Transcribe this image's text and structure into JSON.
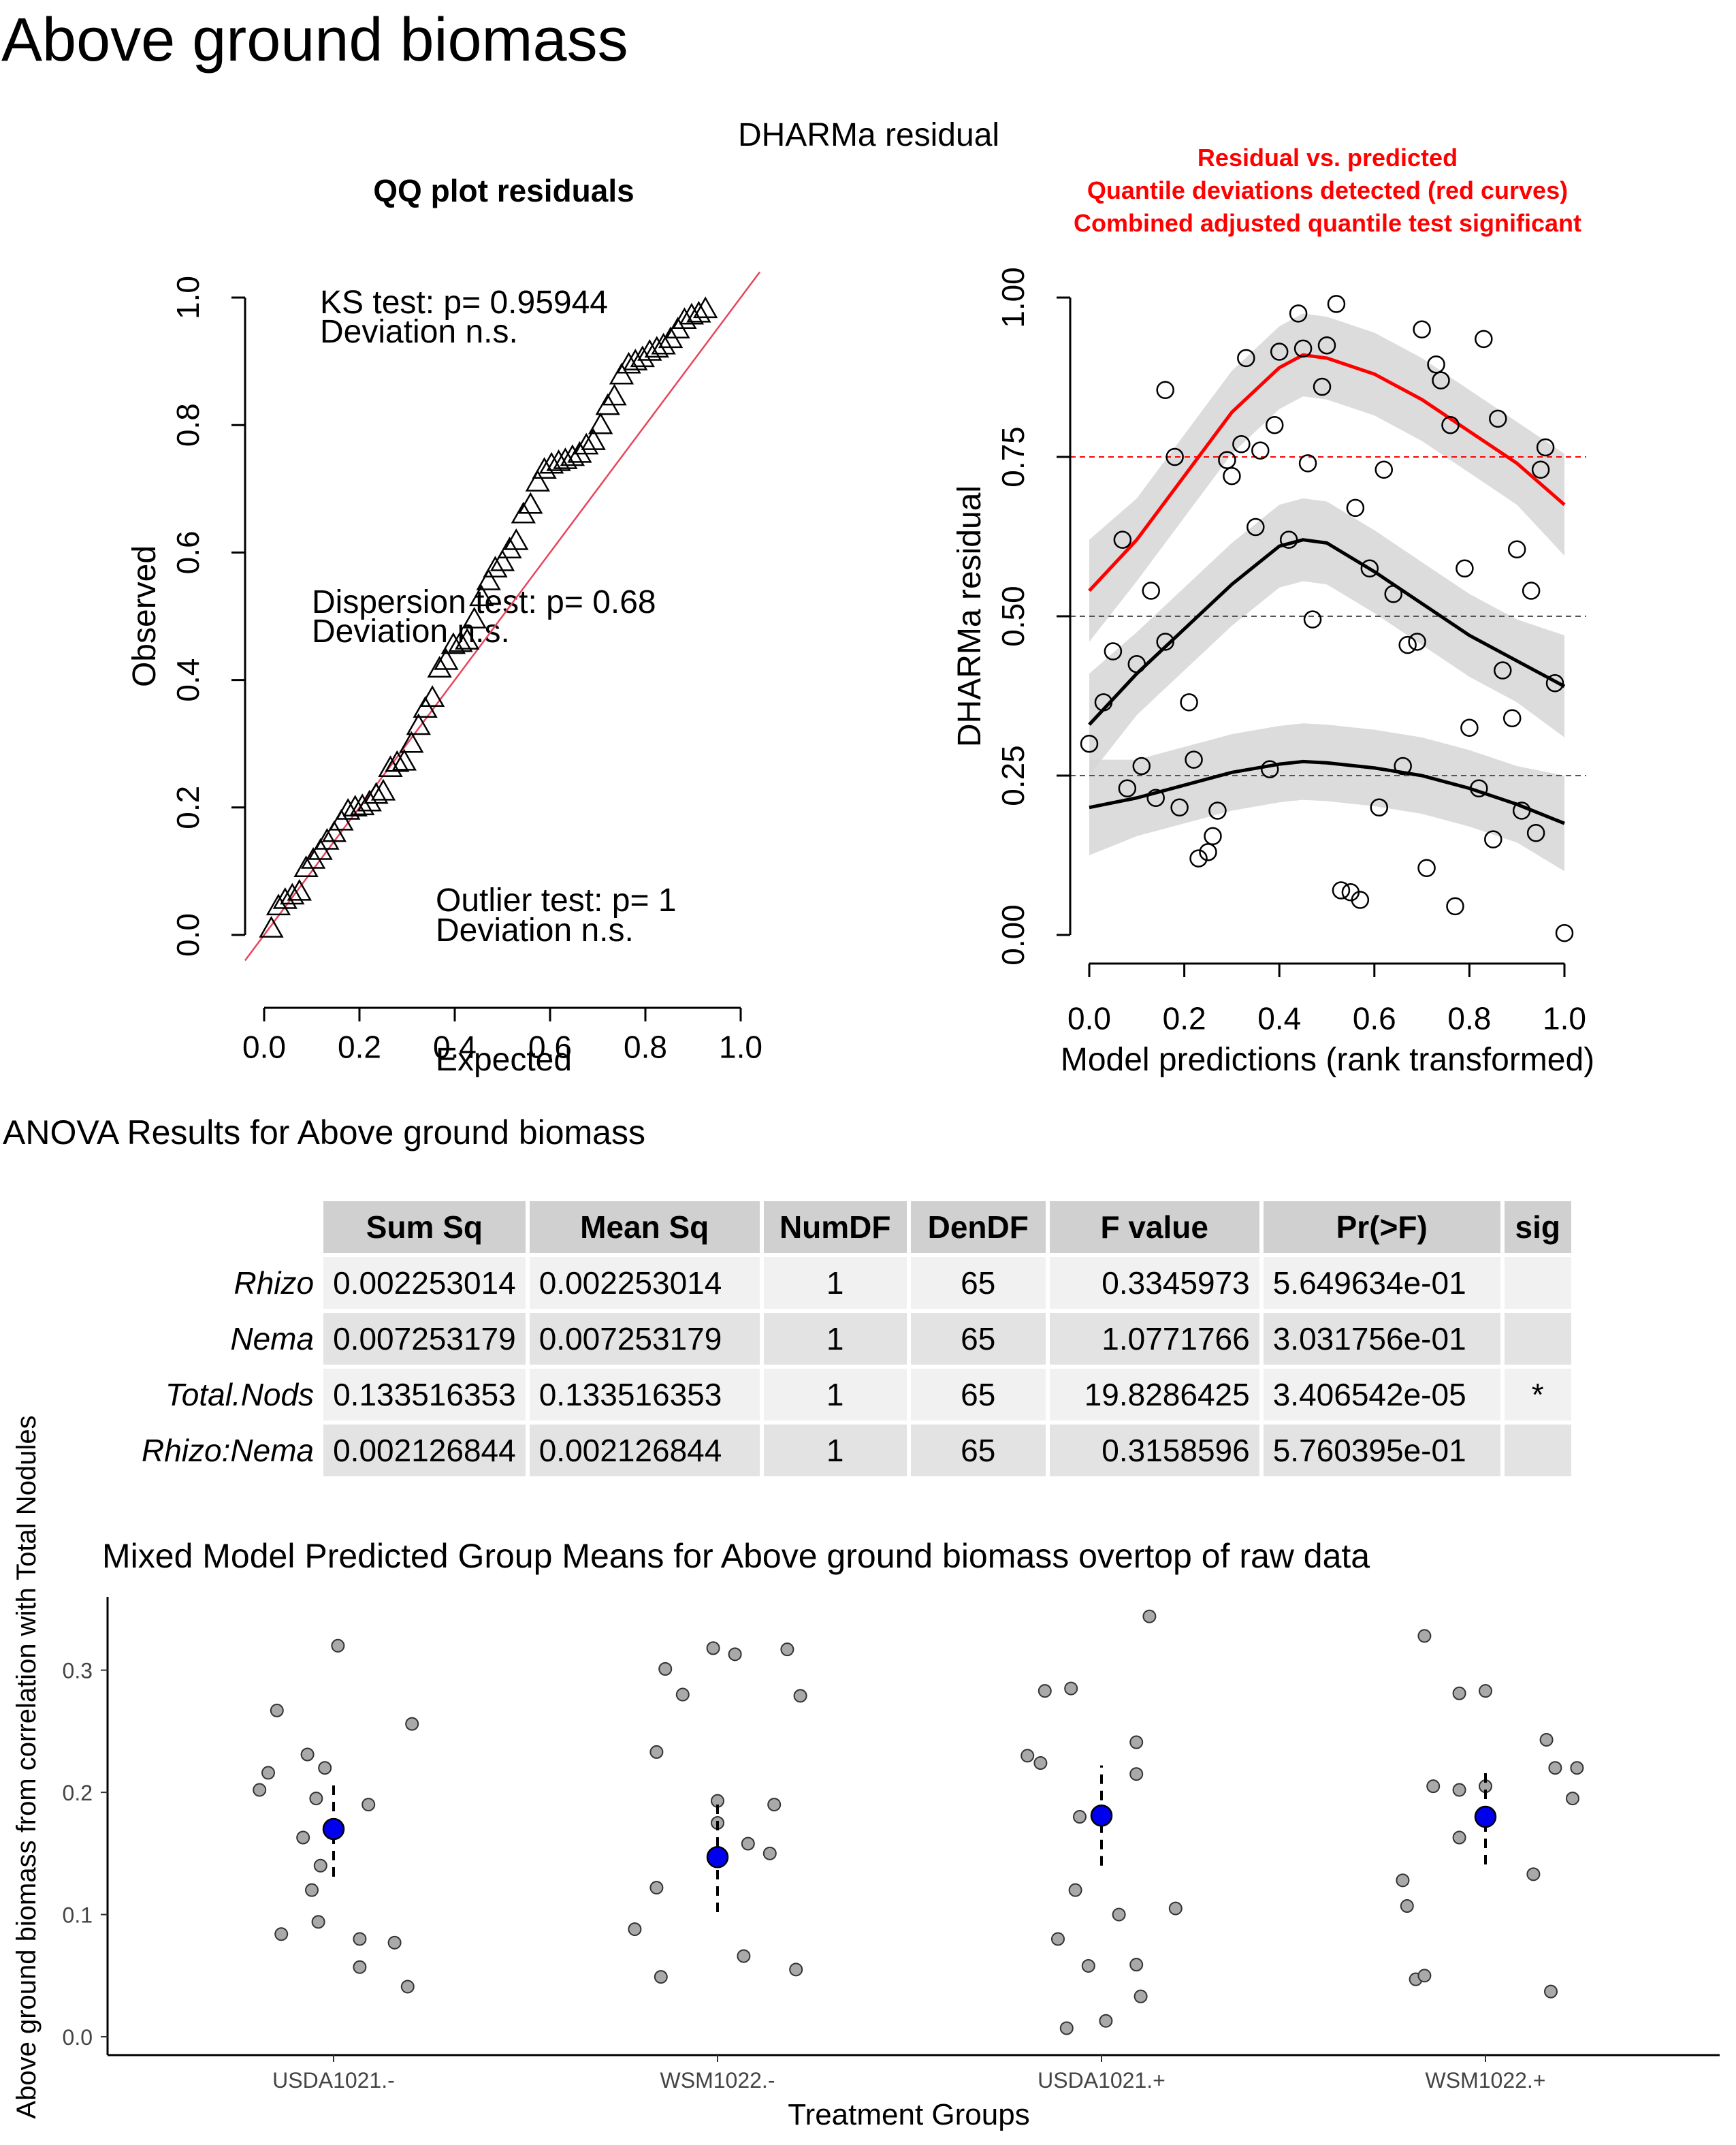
{
  "page_title": "Above ground biomass",
  "dharma_title": "DHARMa residual",
  "chart_data": [
    {
      "type": "scatter",
      "title": "QQ plot residuals",
      "xlabel": "Expected",
      "ylabel": "Observed",
      "xlim": [
        0,
        1
      ],
      "ylim": [
        0,
        1
      ],
      "x_ticks": [
        "0.0",
        "0.2",
        "0.4",
        "0.6",
        "0.8",
        "1.0"
      ],
      "y_ticks": [
        "0.0",
        "0.2",
        "0.4",
        "0.6",
        "0.8",
        "1.0"
      ],
      "reference_line": "y = x",
      "reference_color": "#e8455a",
      "annotations": [
        {
          "line1": "KS test: p= 0.95944",
          "line2": "Deviation  n.s."
        },
        {
          "line1": "Dispersion test: p= 0.68",
          "line2": "Deviation  n.s."
        },
        {
          "line1": "Outlier test: p= 1",
          "line2": "Deviation  n.s."
        }
      ],
      "points": [
        [
          0.015,
          0.01
        ],
        [
          0.03,
          0.045
        ],
        [
          0.044,
          0.055
        ],
        [
          0.059,
          0.062
        ],
        [
          0.074,
          0.068
        ],
        [
          0.088,
          0.105
        ],
        [
          0.103,
          0.118
        ],
        [
          0.118,
          0.132
        ],
        [
          0.132,
          0.148
        ],
        [
          0.147,
          0.16
        ],
        [
          0.162,
          0.178
        ],
        [
          0.176,
          0.195
        ],
        [
          0.191,
          0.2
        ],
        [
          0.206,
          0.202
        ],
        [
          0.221,
          0.208
        ],
        [
          0.235,
          0.22
        ],
        [
          0.25,
          0.225
        ],
        [
          0.265,
          0.262
        ],
        [
          0.279,
          0.27
        ],
        [
          0.294,
          0.272
        ],
        [
          0.309,
          0.3
        ],
        [
          0.324,
          0.328
        ],
        [
          0.338,
          0.355
        ],
        [
          0.353,
          0.372
        ],
        [
          0.368,
          0.418
        ],
        [
          0.382,
          0.43
        ],
        [
          0.397,
          0.455
        ],
        [
          0.412,
          0.458
        ],
        [
          0.426,
          0.462
        ],
        [
          0.441,
          0.495
        ],
        [
          0.456,
          0.53
        ],
        [
          0.471,
          0.555
        ],
        [
          0.485,
          0.575
        ],
        [
          0.5,
          0.585
        ],
        [
          0.515,
          0.605
        ],
        [
          0.529,
          0.618
        ],
        [
          0.544,
          0.66
        ],
        [
          0.559,
          0.675
        ],
        [
          0.574,
          0.71
        ],
        [
          0.588,
          0.73
        ],
        [
          0.603,
          0.738
        ],
        [
          0.618,
          0.742
        ],
        [
          0.632,
          0.745
        ],
        [
          0.647,
          0.75
        ],
        [
          0.662,
          0.755
        ],
        [
          0.676,
          0.768
        ],
        [
          0.691,
          0.775
        ],
        [
          0.706,
          0.8
        ],
        [
          0.721,
          0.83
        ],
        [
          0.735,
          0.845
        ],
        [
          0.75,
          0.878
        ],
        [
          0.765,
          0.895
        ],
        [
          0.779,
          0.9
        ],
        [
          0.794,
          0.905
        ],
        [
          0.809,
          0.915
        ],
        [
          0.824,
          0.92
        ],
        [
          0.838,
          0.925
        ],
        [
          0.853,
          0.935
        ],
        [
          0.868,
          0.95
        ],
        [
          0.882,
          0.965
        ],
        [
          0.897,
          0.972
        ],
        [
          0.912,
          0.975
        ],
        [
          0.926,
          0.982
        ]
      ]
    },
    {
      "type": "scatter",
      "title": "Residual vs. predicted",
      "subtitle_lines": [
        "Quantile deviations detected (red curves)",
        "Combined adjusted quantile test significant"
      ],
      "title_color": "#ff0000",
      "xlabel": "Model predictions (rank transformed)",
      "ylabel": "DHARMa residual",
      "xlim": [
        0,
        1
      ],
      "ylim": [
        0,
        1
      ],
      "x_ticks": [
        "0.0",
        "0.2",
        "0.4",
        "0.6",
        "0.8",
        "1.0"
      ],
      "y_ticks": [
        "0.00",
        "0.25",
        "0.50",
        "0.75",
        "1.00"
      ],
      "reference_lines": [
        0.25,
        0.5,
        0.75
      ],
      "quantile_curves": [
        {
          "quantile": 0.75,
          "color": "#ff0000",
          "x": [
            0,
            0.1,
            0.2,
            0.3,
            0.4,
            0.45,
            0.5,
            0.6,
            0.7,
            0.8,
            0.9,
            1.0
          ],
          "y": [
            0.54,
            0.62,
            0.72,
            0.82,
            0.89,
            0.91,
            0.905,
            0.88,
            0.84,
            0.79,
            0.74,
            0.675
          ]
        },
        {
          "quantile": 0.5,
          "color": "#000000",
          "x": [
            0,
            0.1,
            0.2,
            0.3,
            0.4,
            0.45,
            0.5,
            0.6,
            0.7,
            0.8,
            0.9,
            1.0
          ],
          "y": [
            0.33,
            0.41,
            0.48,
            0.55,
            0.61,
            0.62,
            0.615,
            0.57,
            0.52,
            0.47,
            0.43,
            0.39
          ]
        },
        {
          "quantile": 0.25,
          "color": "#000000",
          "x": [
            0,
            0.1,
            0.2,
            0.3,
            0.4,
            0.45,
            0.5,
            0.6,
            0.7,
            0.8,
            0.9,
            1.0
          ],
          "y": [
            0.2,
            0.215,
            0.235,
            0.255,
            0.268,
            0.272,
            0.27,
            0.262,
            0.25,
            0.23,
            0.205,
            0.175
          ]
        }
      ],
      "points": [
        [
          0.0,
          0.3
        ],
        [
          0.03,
          0.365
        ],
        [
          0.05,
          0.445
        ],
        [
          0.07,
          0.62
        ],
        [
          0.08,
          0.23
        ],
        [
          0.1,
          0.425
        ],
        [
          0.11,
          0.265
        ],
        [
          0.13,
          0.54
        ],
        [
          0.14,
          0.215
        ],
        [
          0.16,
          0.46
        ],
        [
          0.16,
          0.855
        ],
        [
          0.18,
          0.75
        ],
        [
          0.19,
          0.2
        ],
        [
          0.21,
          0.365
        ],
        [
          0.22,
          0.275
        ],
        [
          0.23,
          0.12
        ],
        [
          0.25,
          0.13
        ],
        [
          0.26,
          0.155
        ],
        [
          0.27,
          0.195
        ],
        [
          0.29,
          0.745
        ],
        [
          0.3,
          0.72
        ],
        [
          0.32,
          0.77
        ],
        [
          0.33,
          0.905
        ],
        [
          0.35,
          0.64
        ],
        [
          0.36,
          0.76
        ],
        [
          0.38,
          0.26
        ],
        [
          0.39,
          0.8
        ],
        [
          0.4,
          0.915
        ],
        [
          0.42,
          0.62
        ],
        [
          0.44,
          0.975
        ],
        [
          0.45,
          0.92
        ],
        [
          0.46,
          0.74
        ],
        [
          0.47,
          0.495
        ],
        [
          0.49,
          0.86
        ],
        [
          0.5,
          0.925
        ],
        [
          0.52,
          0.99
        ],
        [
          0.53,
          0.07
        ],
        [
          0.55,
          0.067
        ],
        [
          0.56,
          0.67
        ],
        [
          0.57,
          0.055
        ],
        [
          0.59,
          0.575
        ],
        [
          0.61,
          0.2
        ],
        [
          0.62,
          0.73
        ],
        [
          0.64,
          0.535
        ],
        [
          0.66,
          0.265
        ],
        [
          0.67,
          0.455
        ],
        [
          0.69,
          0.46
        ],
        [
          0.7,
          0.95
        ],
        [
          0.71,
          0.105
        ],
        [
          0.73,
          0.895
        ],
        [
          0.74,
          0.87
        ],
        [
          0.76,
          0.8
        ],
        [
          0.77,
          0.045
        ],
        [
          0.79,
          0.575
        ],
        [
          0.8,
          0.325
        ],
        [
          0.82,
          0.23
        ],
        [
          0.83,
          0.935
        ],
        [
          0.85,
          0.15
        ],
        [
          0.86,
          0.81
        ],
        [
          0.87,
          0.415
        ],
        [
          0.89,
          0.34
        ],
        [
          0.9,
          0.605
        ],
        [
          0.91,
          0.195
        ],
        [
          0.93,
          0.54
        ],
        [
          0.94,
          0.16
        ],
        [
          0.95,
          0.73
        ],
        [
          0.96,
          0.765
        ],
        [
          0.98,
          0.395
        ],
        [
          1.0,
          0.003
        ]
      ]
    },
    {
      "type": "table",
      "title": "ANOVA Results for Above ground biomass",
      "columns": [
        "Sum Sq",
        "Mean Sq",
        "NumDF",
        "DenDF",
        "F value",
        "Pr(>F)",
        "sig"
      ],
      "rows": [
        {
          "name": "Rhizo",
          "values": [
            "0.002253014",
            "0.002253014",
            "1",
            "65",
            "0.3345973",
            "5.649634e-01",
            ""
          ]
        },
        {
          "name": "Nema",
          "values": [
            "0.007253179",
            "0.007253179",
            "1",
            "65",
            "1.0771766",
            "3.031756e-01",
            ""
          ]
        },
        {
          "name": "Total.Nods",
          "values": [
            "0.133516353",
            "0.133516353",
            "1",
            "65",
            "19.8286425",
            "3.406542e-05",
            "*"
          ]
        },
        {
          "name": "Rhizo:Nema",
          "values": [
            "0.002126844",
            "0.002126844",
            "1",
            "65",
            "0.3158596",
            "5.760395e-01",
            ""
          ]
        }
      ]
    },
    {
      "type": "scatter",
      "title": "Mixed Model Predicted Group Means for Above ground biomass overtop of raw data",
      "xlabel": "Treatment Groups",
      "ylabel": "Above ground biomass from correlation with Total Nodules",
      "categories": [
        "USDA1021.-",
        "WSM1022.-",
        "USDA1021.+",
        "WSM1022.+"
      ],
      "ylim": [
        -0.005,
        0.36
      ],
      "y_ticks": [
        "0.0",
        "0.1",
        "0.2",
        "0.3"
      ],
      "raw_point_color": "#a9a9a9",
      "mean_color": "#0000ee",
      "groups": [
        {
          "name": "USDA1021.-",
          "mean": 0.17,
          "lower": 0.131,
          "upper": 0.209,
          "points": [
            [
              -0.17,
              0.202
            ],
            [
              -0.15,
              0.216
            ],
            [
              -0.12,
              0.084
            ],
            [
              -0.13,
              0.267
            ],
            [
              -0.07,
              0.163
            ],
            [
              -0.06,
              0.231
            ],
            [
              -0.05,
              0.12
            ],
            [
              -0.04,
              0.195
            ],
            [
              -0.035,
              0.094
            ],
            [
              -0.03,
              0.14
            ],
            [
              -0.02,
              0.22
            ],
            [
              0.01,
              0.32
            ],
            [
              0.06,
              0.057
            ],
            [
              0.06,
              0.08
            ],
            [
              0.08,
              0.19
            ],
            [
              0.14,
              0.077
            ],
            [
              0.17,
              0.041
            ],
            [
              0.18,
              0.256
            ]
          ]
        },
        {
          "name": "WSM1022.-",
          "mean": 0.147,
          "lower": 0.102,
          "upper": 0.192,
          "points": [
            [
              -0.19,
              0.088
            ],
            [
              -0.14,
              0.233
            ],
            [
              -0.14,
              0.122
            ],
            [
              -0.13,
              0.049
            ],
            [
              -0.12,
              0.301
            ],
            [
              -0.08,
              0.28
            ],
            [
              -0.01,
              0.318
            ],
            [
              0.0,
              0.193
            ],
            [
              0.0,
              0.175
            ],
            [
              0.04,
              0.313
            ],
            [
              0.06,
              0.066
            ],
            [
              0.07,
              0.158
            ],
            [
              0.12,
              0.15
            ],
            [
              0.13,
              0.19
            ],
            [
              0.16,
              0.317
            ],
            [
              0.18,
              0.055
            ],
            [
              0.19,
              0.279
            ]
          ]
        },
        {
          "name": "USDA1021.+",
          "mean": 0.181,
          "lower": 0.14,
          "upper": 0.222,
          "points": [
            [
              -0.17,
              0.23
            ],
            [
              -0.14,
              0.224
            ],
            [
              -0.13,
              0.283
            ],
            [
              -0.1,
              0.08
            ],
            [
              -0.08,
              0.007
            ],
            [
              -0.07,
              0.285
            ],
            [
              -0.06,
              0.12
            ],
            [
              -0.05,
              0.18
            ],
            [
              -0.03,
              0.058
            ],
            [
              0.01,
              0.013
            ],
            [
              0.04,
              0.1
            ],
            [
              0.08,
              0.241
            ],
            [
              0.08,
              0.215
            ],
            [
              0.08,
              0.059
            ],
            [
              0.09,
              0.033
            ],
            [
              0.11,
              0.344
            ],
            [
              0.17,
              0.105
            ]
          ]
        },
        {
          "name": "WSM1022.+",
          "mean": 0.18,
          "lower": 0.141,
          "upper": 0.219,
          "points": [
            [
              -0.19,
              0.128
            ],
            [
              -0.18,
              0.107
            ],
            [
              -0.16,
              0.047
            ],
            [
              -0.14,
              0.05
            ],
            [
              -0.14,
              0.328
            ],
            [
              -0.12,
              0.205
            ],
            [
              -0.06,
              0.202
            ],
            [
              -0.06,
              0.163
            ],
            [
              -0.06,
              0.281
            ],
            [
              0.0,
              0.283
            ],
            [
              0.0,
              0.205
            ],
            [
              0.11,
              0.133
            ],
            [
              0.14,
              0.243
            ],
            [
              0.15,
              0.037
            ],
            [
              0.16,
              0.22
            ],
            [
              0.2,
              0.195
            ],
            [
              0.21,
              0.22
            ]
          ]
        }
      ]
    }
  ]
}
